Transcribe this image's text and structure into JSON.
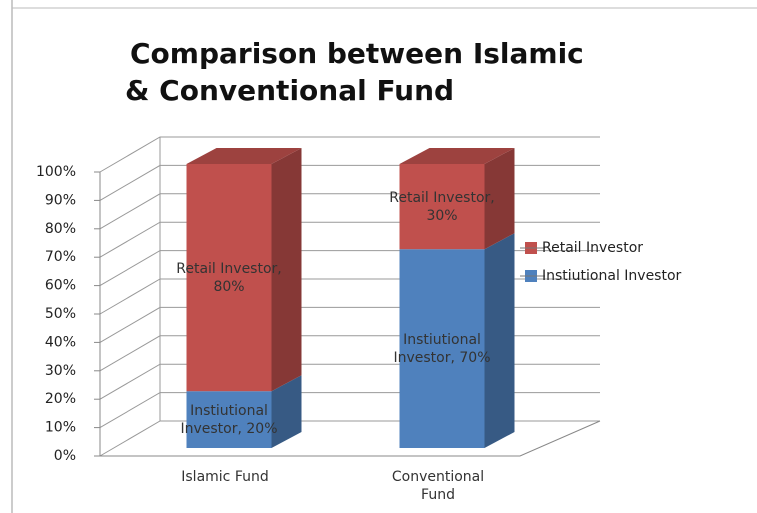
{
  "chart_data": {
    "type": "stacked_bar_3d",
    "title": [
      "Comparison between Islamic",
      "& Conventional  Fund"
    ],
    "categories": [
      "Islamic Fund",
      "Conventional Fund"
    ],
    "series": [
      {
        "name": "Instiutional Investor",
        "color": "#4f81bd",
        "values": [
          20,
          70
        ],
        "value_labels": [
          "Instiutional Investor, 20%",
          "Instiutional Investor, 70%"
        ]
      },
      {
        "name": "Retail Investor",
        "color": "#c0504d",
        "values": [
          80,
          30
        ],
        "value_labels": [
          "Retail Investor, 80%",
          "Retail Investor, 30%"
        ]
      }
    ],
    "ylim": [
      0,
      100
    ],
    "yticks": [
      {
        "value": 0,
        "label": "0%"
      },
      {
        "value": 10,
        "label": "10%"
      },
      {
        "value": 20,
        "label": "20%"
      },
      {
        "value": 30,
        "label": "30%"
      },
      {
        "value": 40,
        "label": "40%"
      },
      {
        "value": 50,
        "label": "50%"
      },
      {
        "value": 60,
        "label": "60%"
      },
      {
        "value": 70,
        "label": "70%"
      },
      {
        "value": 80,
        "label": "80%"
      },
      {
        "value": 90,
        "label": "90%"
      },
      {
        "value": 100,
        "label": "100%"
      }
    ],
    "grid": true,
    "legend": "right"
  }
}
